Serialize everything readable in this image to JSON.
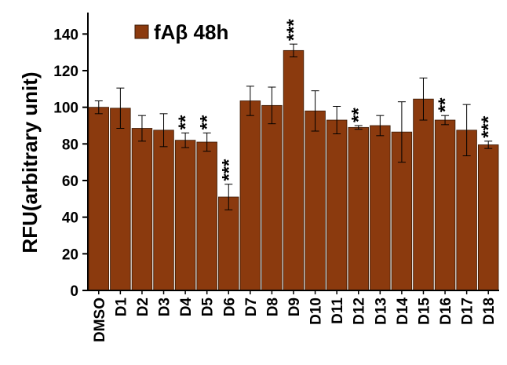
{
  "chart_data": {
    "type": "bar",
    "categories": [
      "DMSO",
      "D1",
      "D2",
      "D3",
      "D4",
      "D5",
      "D6",
      "D7",
      "D8",
      "D9",
      "D10",
      "D11",
      "D12",
      "D13",
      "D14",
      "D15",
      "D16",
      "D17",
      "D18"
    ],
    "series": [
      {
        "name": "fAβ 48h",
        "values": [
          100,
          99.5,
          88.5,
          87.5,
          82,
          81,
          51,
          103.5,
          101,
          131,
          98,
          93,
          89,
          90,
          86.5,
          104.5,
          93,
          87.5,
          79.5
        ],
        "errors": [
          3.5,
          11,
          7,
          9,
          4,
          5,
          7,
          8,
          10,
          3.5,
          11,
          7.5,
          1,
          5.5,
          16.5,
          11.5,
          2.5,
          14,
          2
        ]
      }
    ],
    "significance": [
      "",
      "",
      "",
      "",
      "**",
      "**",
      "***",
      "",
      "",
      "***",
      "",
      "",
      "**",
      "",
      "",
      "",
      "**",
      "",
      "***"
    ],
    "ylabel": "RFU(arbitrary unit)",
    "xlabel": "",
    "ylim": [
      0,
      150
    ],
    "yticks": [
      0,
      20,
      40,
      60,
      80,
      100,
      120,
      140
    ],
    "legend": {
      "label": "fAβ 48h",
      "position": "top-left"
    },
    "grid": false,
    "colors": {
      "bar_fill": "#8B3A0E",
      "bar_edge": "#3a1a05",
      "axis": "#000000"
    }
  }
}
